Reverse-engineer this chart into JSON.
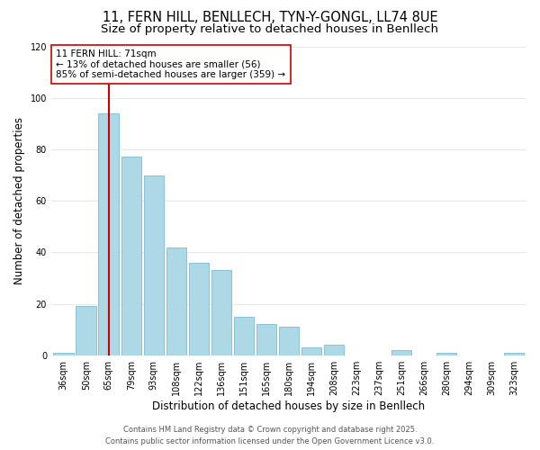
{
  "title": "11, FERN HILL, BENLLECH, TYN-Y-GONGL, LL74 8UE",
  "subtitle": "Size of property relative to detached houses in Benllech",
  "xlabel": "Distribution of detached houses by size in Benllech",
  "ylabel": "Number of detached properties",
  "categories": [
    "36sqm",
    "50sqm",
    "65sqm",
    "79sqm",
    "93sqm",
    "108sqm",
    "122sqm",
    "136sqm",
    "151sqm",
    "165sqm",
    "180sqm",
    "194sqm",
    "208sqm",
    "223sqm",
    "237sqm",
    "251sqm",
    "266sqm",
    "280sqm",
    "294sqm",
    "309sqm",
    "323sqm"
  ],
  "values": [
    1,
    19,
    94,
    77,
    70,
    42,
    36,
    33,
    15,
    12,
    11,
    3,
    4,
    0,
    0,
    2,
    0,
    1,
    0,
    0,
    1
  ],
  "bar_color": "#add8e6",
  "bar_edge_color": "#7fbcd2",
  "highlight_bar_index": 2,
  "vline_color": "#cc0000",
  "ylim": [
    0,
    120
  ],
  "yticks": [
    0,
    20,
    40,
    60,
    80,
    100,
    120
  ],
  "annotation_title": "11 FERN HILL: 71sqm",
  "annotation_line1": "← 13% of detached houses are smaller (56)",
  "annotation_line2": "85% of semi-detached houses are larger (359) →",
  "footer_line1": "Contains HM Land Registry data © Crown copyright and database right 2025.",
  "footer_line2": "Contains public sector information licensed under the Open Government Licence v3.0.",
  "background_color": "#ffffff",
  "grid_color": "#e8e8e8",
  "title_fontsize": 10.5,
  "subtitle_fontsize": 9.5,
  "axis_label_fontsize": 8.5,
  "tick_fontsize": 7,
  "annotation_fontsize": 7.5,
  "footer_fontsize": 6
}
